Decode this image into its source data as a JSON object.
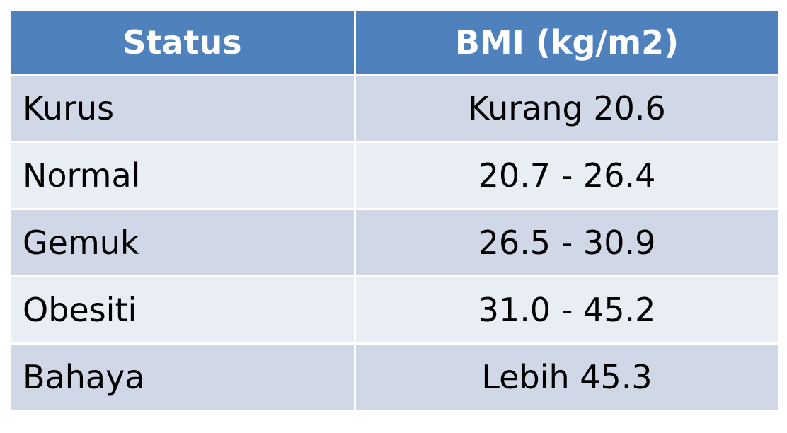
{
  "table": {
    "header": [
      "Status",
      "BMI (kg/m2)"
    ],
    "rows": [
      [
        "Kurus",
        "Kurang 20.6"
      ],
      [
        "Normal",
        "20.7 - 26.4"
      ],
      [
        "Gemuk",
        "26.5 - 30.9"
      ],
      [
        "Obesiti",
        "31.0 - 45.2"
      ],
      [
        "Bahaya",
        "Lebih 45.3"
      ]
    ]
  }
}
